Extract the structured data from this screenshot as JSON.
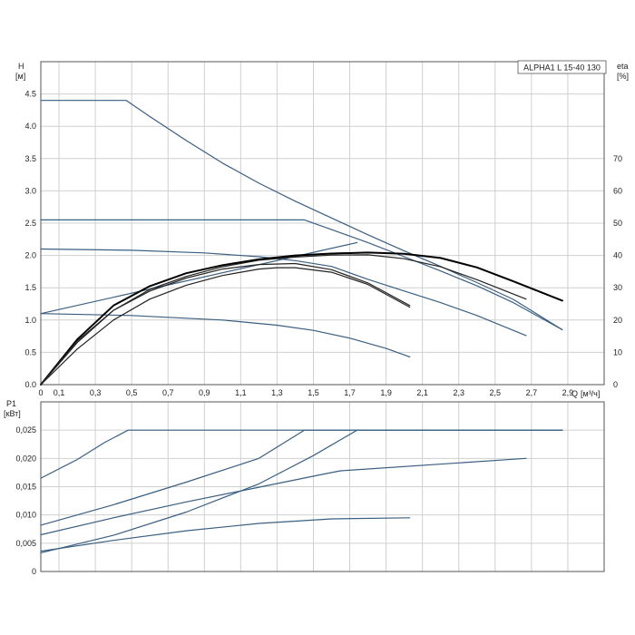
{
  "chart_data": [
    {
      "type": "line",
      "model_label": "ALPHA1 L 15-40 130",
      "ylabel": "H",
      "yunit": "[м]",
      "y2label": "eta",
      "y2unit": "[%]",
      "xlabel": "Q",
      "xunit": "[м³/ч]",
      "xlim": [
        0,
        3.1
      ],
      "ylim": [
        0,
        5
      ],
      "y2lim": [
        0,
        100
      ],
      "x_ticks": [
        "0",
        "0,1",
        "0,3",
        "0,5",
        "0,7",
        "0,9",
        "1,1",
        "1,3",
        "1,5",
        "1,7",
        "1,9",
        "2,1",
        "2,3",
        "2,5",
        "2,7",
        "2,9"
      ],
      "x_tick_values": [
        0,
        0.1,
        0.3,
        0.5,
        0.7,
        0.9,
        1.1,
        1.3,
        1.5,
        1.7,
        1.9,
        2.1,
        2.3,
        2.5,
        2.7,
        2.9
      ],
      "y_ticks": [
        "0.0",
        "0.5",
        "1.0",
        "1.5",
        "2.0",
        "2.5",
        "3.0",
        "3.5",
        "4.0",
        "4.5"
      ],
      "y_tick_values": [
        0,
        0.5,
        1,
        1.5,
        2,
        2.5,
        3,
        3.5,
        4,
        4.5
      ],
      "y2_ticks": [
        "0",
        "10",
        "20",
        "30",
        "40",
        "50",
        "60",
        "70"
      ],
      "y2_tick_values": [
        0,
        10,
        20,
        30,
        40,
        50,
        60,
        70
      ],
      "grid": true,
      "series": [
        {
          "color": "#3a5f82",
          "x": [
            0,
            0.47,
            0.6,
            0.8,
            1.0,
            1.2,
            1.4,
            1.6,
            1.8,
            2.0,
            2.2,
            2.4,
            2.6,
            2.87
          ],
          "y": [
            4.4,
            4.4,
            4.15,
            3.78,
            3.43,
            3.12,
            2.84,
            2.58,
            2.32,
            2.07,
            1.83,
            1.58,
            1.32,
            0.85
          ]
        },
        {
          "color": "#3a5f82",
          "x": [
            0,
            1.45,
            1.6,
            1.8,
            2.0,
            2.2,
            2.4,
            2.6,
            2.87
          ],
          "y": [
            2.55,
            2.55,
            2.4,
            2.2,
            1.98,
            1.76,
            1.53,
            1.27,
            0.85
          ]
        },
        {
          "color": "#3a5f82",
          "x": [
            0,
            0.5,
            0.9,
            1.2,
            1.4,
            1.6,
            1.8,
            2.0,
            2.2,
            2.4,
            2.67
          ],
          "y": [
            2.1,
            2.08,
            2.04,
            1.98,
            1.92,
            1.83,
            1.63,
            1.45,
            1.27,
            1.07,
            0.76
          ]
        },
        {
          "color": "#3a5f82",
          "x": [
            0,
            0.5,
            1.0,
            1.3,
            1.5,
            1.7,
            1.9,
            2.03
          ],
          "y": [
            1.1,
            1.07,
            1.0,
            0.92,
            0.84,
            0.72,
            0.56,
            0.43
          ]
        },
        {
          "color": "#3a5f82",
          "x": [
            0,
            1.74
          ],
          "y": [
            1.1,
            2.2
          ]
        },
        {
          "color": "#000000",
          "width": 2,
          "x": [
            0,
            0.2,
            0.4,
            0.6,
            0.8,
            1.0,
            1.2,
            1.4,
            1.6,
            1.8,
            2.0,
            2.2,
            2.4,
            2.6,
            2.87
          ],
          "y2": [
            0,
            14,
            24.5,
            30.5,
            34.5,
            37,
            38.8,
            40,
            40.6,
            40.9,
            40.5,
            39.2,
            36.3,
            32,
            26
          ]
        },
        {
          "color": "#222222",
          "x": [
            0,
            0.2,
            0.4,
            0.6,
            0.8,
            1.0,
            1.2,
            1.4,
            1.6,
            1.8,
            2.0,
            2.2,
            2.4,
            2.67
          ],
          "y2": [
            0,
            13,
            23,
            29.5,
            33.5,
            36.5,
            38.5,
            39.5,
            40.1,
            40.2,
            39,
            36.5,
            32.5,
            26.5
          ]
        },
        {
          "color": "#222222",
          "x": [
            0,
            0.2,
            0.4,
            0.6,
            0.8,
            1.0,
            1.2,
            1.4,
            1.6,
            1.8,
            2.03
          ],
          "y2": [
            0,
            13.5,
            23,
            29,
            33,
            35.8,
            37.2,
            37.5,
            35.6,
            31.5,
            24.5
          ]
        },
        {
          "color": "#222222",
          "x": [
            0,
            0.2,
            0.4,
            0.6,
            0.8,
            1.0,
            1.2,
            1.3,
            1.4,
            1.6,
            1.8,
            2.03
          ],
          "y2": [
            0,
            11,
            20,
            26.5,
            30.8,
            33.8,
            35.8,
            36.2,
            36.2,
            34.8,
            31,
            24
          ]
        }
      ]
    },
    {
      "type": "line",
      "ylabel": "P1",
      "yunit": "[кВт]",
      "xlim": [
        0,
        3.1
      ],
      "ylim": [
        0,
        0.03
      ],
      "y_ticks": [
        "0",
        "0,005",
        "0,010",
        "0,015",
        "0,020",
        "0,025"
      ],
      "y_tick_values": [
        0,
        0.005,
        0.01,
        0.015,
        0.02,
        0.025
      ],
      "grid": true,
      "series": [
        {
          "color": "#3a5f82",
          "x": [
            0,
            0.2,
            0.35,
            0.48,
            2.87
          ],
          "y": [
            0.0165,
            0.0198,
            0.0228,
            0.025,
            0.025
          ]
        },
        {
          "color": "#3a5f82",
          "x": [
            0,
            0.4,
            0.8,
            1.2,
            1.6,
            1.65,
            2.67
          ],
          "y": [
            0.0065,
            0.0095,
            0.0123,
            0.0149,
            0.0175,
            0.0178,
            0.02
          ]
        },
        {
          "color": "#3a5f82",
          "x": [
            0,
            0.4,
            0.8,
            1.2,
            1.45,
            2.87
          ],
          "y": [
            0.0082,
            0.0118,
            0.0158,
            0.02,
            0.025,
            0.025
          ]
        },
        {
          "color": "#3a5f82",
          "x": [
            0,
            0.4,
            0.8,
            1.2,
            1.5,
            1.74,
            2.87
          ],
          "y": [
            0.0033,
            0.0064,
            0.0105,
            0.0155,
            0.0205,
            0.025,
            0.025
          ]
        },
        {
          "color": "#3a5f82",
          "x": [
            0,
            0.4,
            0.8,
            1.2,
            1.6,
            2.03
          ],
          "y": [
            0.0036,
            0.0055,
            0.0072,
            0.0085,
            0.0093,
            0.0095
          ]
        }
      ]
    }
  ]
}
